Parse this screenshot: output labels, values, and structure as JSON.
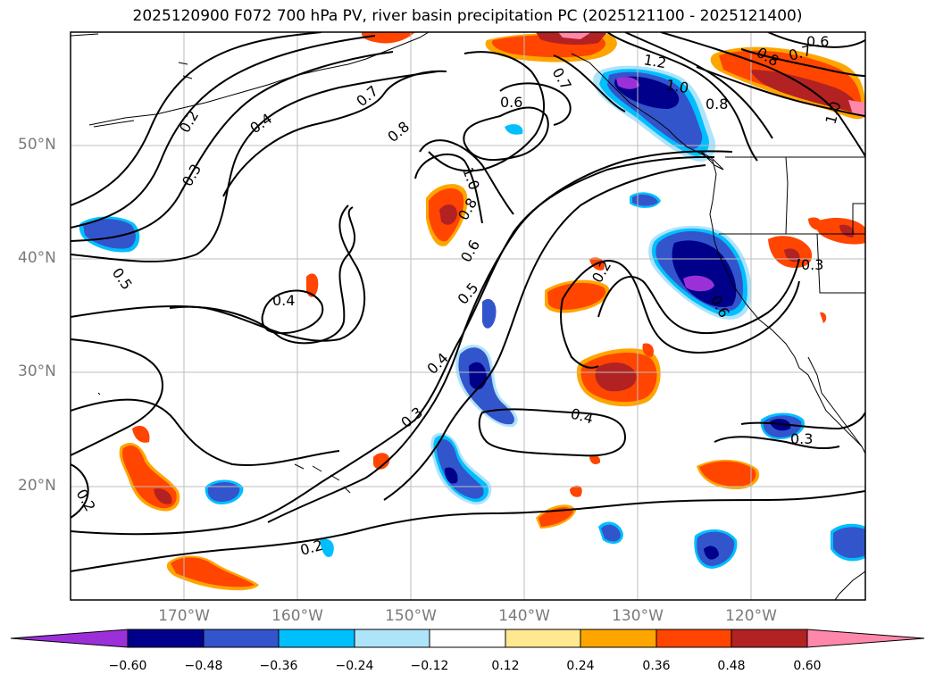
{
  "title": "2025120900 F072 700 hPa PV, river basin precipitation PC (2025121100 - 2025121400)",
  "lat_labels": [
    "50°N",
    "40°N",
    "30°N",
    "20°N"
  ],
  "lon_labels": [
    "170°W",
    "160°W",
    "150°W",
    "140°W",
    "130°W",
    "120°W"
  ],
  "colorbar": {
    "ticks": [
      "−0.60",
      "−0.48",
      "−0.36",
      "−0.24",
      "−0.12",
      "0.12",
      "0.24",
      "0.36",
      "0.48",
      "0.60"
    ],
    "colors": [
      "#9b30d9",
      "#00008b",
      "#3355cc",
      "#00bfff",
      "#aee4fa",
      "#ffffff",
      "#ffe88f",
      "#ffa500",
      "#ff4500",
      "#b22222",
      "#ff88aa"
    ]
  },
  "contour_labels": [
    "0.2",
    "0.3",
    "0.4",
    "0.7",
    "0.8",
    "0.5",
    "0.4",
    "0.6",
    "1.0",
    "0.8",
    "0.6",
    "0.5",
    "0.4",
    "0.3",
    "0.2",
    "0.2",
    "0.4",
    "0.3",
    "0.3",
    "0.7",
    "1.2",
    "1.0",
    "0.8",
    "0.6",
    "0.8",
    "0.7",
    "1.0",
    "0.2",
    "0.6"
  ],
  "chart_data": {
    "type": "contour-map",
    "title": "2025120900 F072 700 hPa PV, river basin precipitation PC (2025121100 - 2025121400)",
    "contour_variable": "700 hPa PV",
    "fill_variable": "river basin precipitation PC",
    "fill_levels": [
      -0.6,
      -0.48,
      -0.36,
      -0.24,
      -0.12,
      0.12,
      0.24,
      0.36,
      0.48,
      0.6
    ],
    "lon_range": [
      -180,
      -110
    ],
    "lat_range": [
      10,
      60
    ]
  }
}
